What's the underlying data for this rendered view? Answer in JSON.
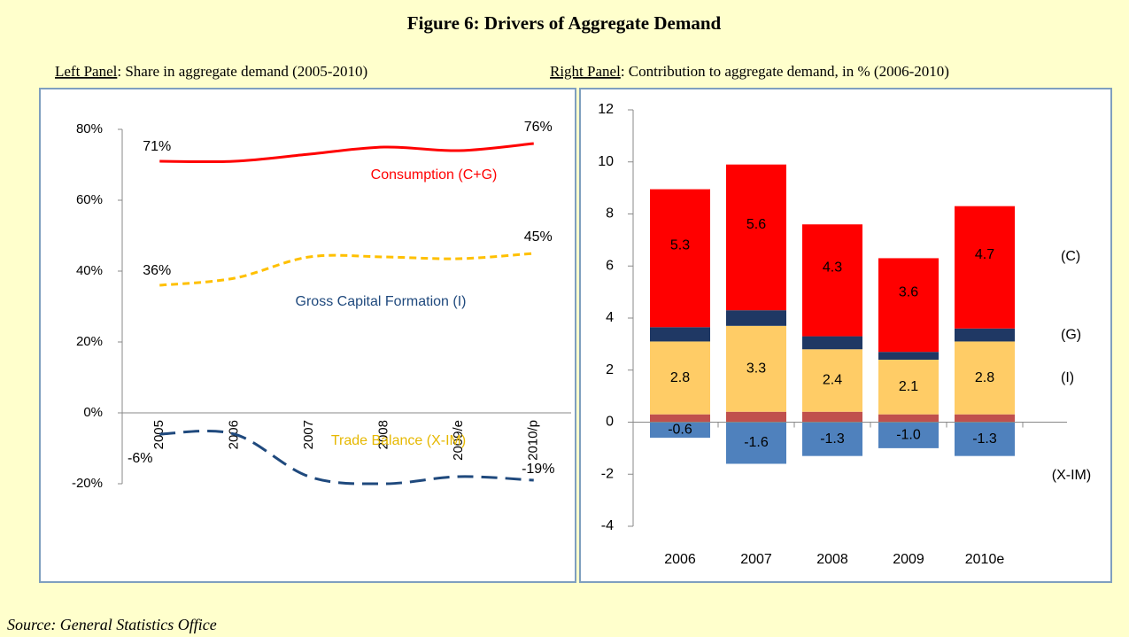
{
  "title": "Figure 6: Drivers of Aggregate Demand",
  "source": "Source: General Statistics Office",
  "chart_data": [
    {
      "type": "line",
      "panel_label": "Left Panel",
      "subtitle": ": Share in aggregate demand (2005-2010)",
      "categories": [
        "2005",
        "2006",
        "2007",
        "2008",
        "2009/e",
        "2010/p"
      ],
      "ylim": [
        -20,
        80
      ],
      "yticks": [
        {
          "value": -20,
          "label": "-20%"
        },
        {
          "value": 0,
          "label": "0%"
        },
        {
          "value": 20,
          "label": "20%"
        },
        {
          "value": 40,
          "label": "40%"
        },
        {
          "value": 60,
          "label": "60%"
        },
        {
          "value": 80,
          "label": "80%"
        }
      ],
      "series": [
        {
          "name": "Consumption (C+G)",
          "color": "#ff0000",
          "label_color": "#ff0000",
          "dashed": false,
          "values": [
            71,
            71,
            73,
            75,
            74,
            76
          ],
          "value_labels": [
            "71%",
            null,
            null,
            null,
            null,
            "76%"
          ]
        },
        {
          "name": "Gross Capital Formation (I)",
          "color": "#ffc000",
          "label_color": "#1f497d",
          "dashed": true,
          "values": [
            36,
            38,
            44,
            44,
            43.5,
            45
          ],
          "value_labels": [
            "36%",
            null,
            null,
            null,
            null,
            "45%"
          ]
        },
        {
          "name": "Trade Balance (X-IM)",
          "color": "#1f497d",
          "label_color": "#e6b800",
          "dashed": true,
          "values": [
            -6,
            -6,
            -18,
            -20,
            -18,
            -19
          ],
          "value_labels": [
            "-6%",
            null,
            null,
            null,
            null,
            "-19%"
          ]
        }
      ]
    },
    {
      "type": "bar",
      "stacked": true,
      "panel_label": "Right Panel",
      "subtitle": ": Contribution to aggregate demand, in % (2006-2010)",
      "categories": [
        "2006",
        "2007",
        "2008",
        "2009",
        "2010e"
      ],
      "ylim": [
        -4,
        12
      ],
      "yticks": [
        -4,
        -2,
        0,
        2,
        4,
        6,
        8,
        10,
        12
      ],
      "series": [
        {
          "color": "#c0504d",
          "values": [
            0.3,
            0.4,
            0.4,
            0.3,
            0.3
          ],
          "data_labels": false
        },
        {
          "name": "(I)",
          "color": "#ffcc66",
          "values": [
            2.8,
            3.3,
            2.4,
            2.1,
            2.8
          ],
          "data_labels": true
        },
        {
          "name": "(G)",
          "color": "#1f3864",
          "values": [
            0.55,
            0.6,
            0.5,
            0.3,
            0.5
          ],
          "data_labels": false
        },
        {
          "name": "(C)",
          "color": "#ff0000",
          "values": [
            5.3,
            5.6,
            4.3,
            3.6,
            4.7
          ],
          "data_labels": true
        },
        {
          "name": "(X-IM)",
          "color": "#4f81bd",
          "values": [
            -0.6,
            -1.6,
            -1.3,
            -1.0,
            -1.3
          ],
          "value_labels": [
            "-0.6",
            "-1.6",
            "-1.3",
            "-1.0",
            "-1.3"
          ],
          "data_labels": true
        }
      ]
    }
  ]
}
